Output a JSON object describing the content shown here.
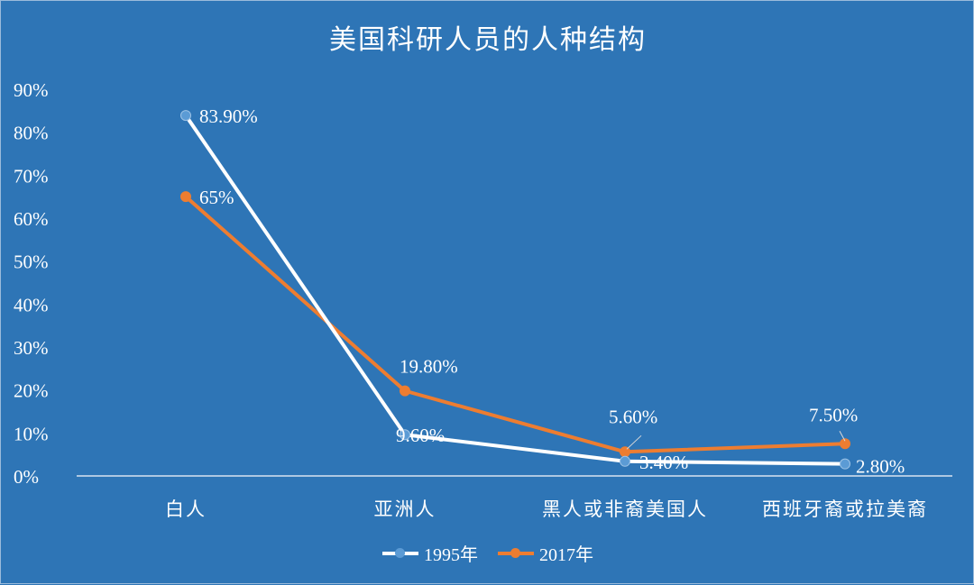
{
  "chart_data": {
    "type": "line",
    "title": "美国科研人员的人种结构",
    "categories": [
      "白人",
      "亚洲人",
      "黑人或非裔美国人",
      "西班牙裔或拉美裔"
    ],
    "yticks": [
      "0%",
      "10%",
      "20%",
      "30%",
      "40%",
      "50%",
      "60%",
      "70%",
      "80%",
      "90%"
    ],
    "ylim": [
      0,
      90
    ],
    "grid": false,
    "legend_position": "bottom",
    "series": [
      {
        "name": "1995年",
        "values": [
          83.9,
          9.6,
          3.4,
          2.8
        ],
        "labels": [
          "83.90%",
          "9.60%",
          "3.40%",
          "2.80%"
        ],
        "color": "#ffffff",
        "marker_color": "#5b9bd5"
      },
      {
        "name": "2017年",
        "values": [
          65,
          19.8,
          5.6,
          7.5
        ],
        "labels": [
          "65%",
          "19.80%",
          "5.60%",
          "7.50%"
        ],
        "color": "#ed7d31",
        "marker_color": "#ed7d31"
      }
    ]
  }
}
